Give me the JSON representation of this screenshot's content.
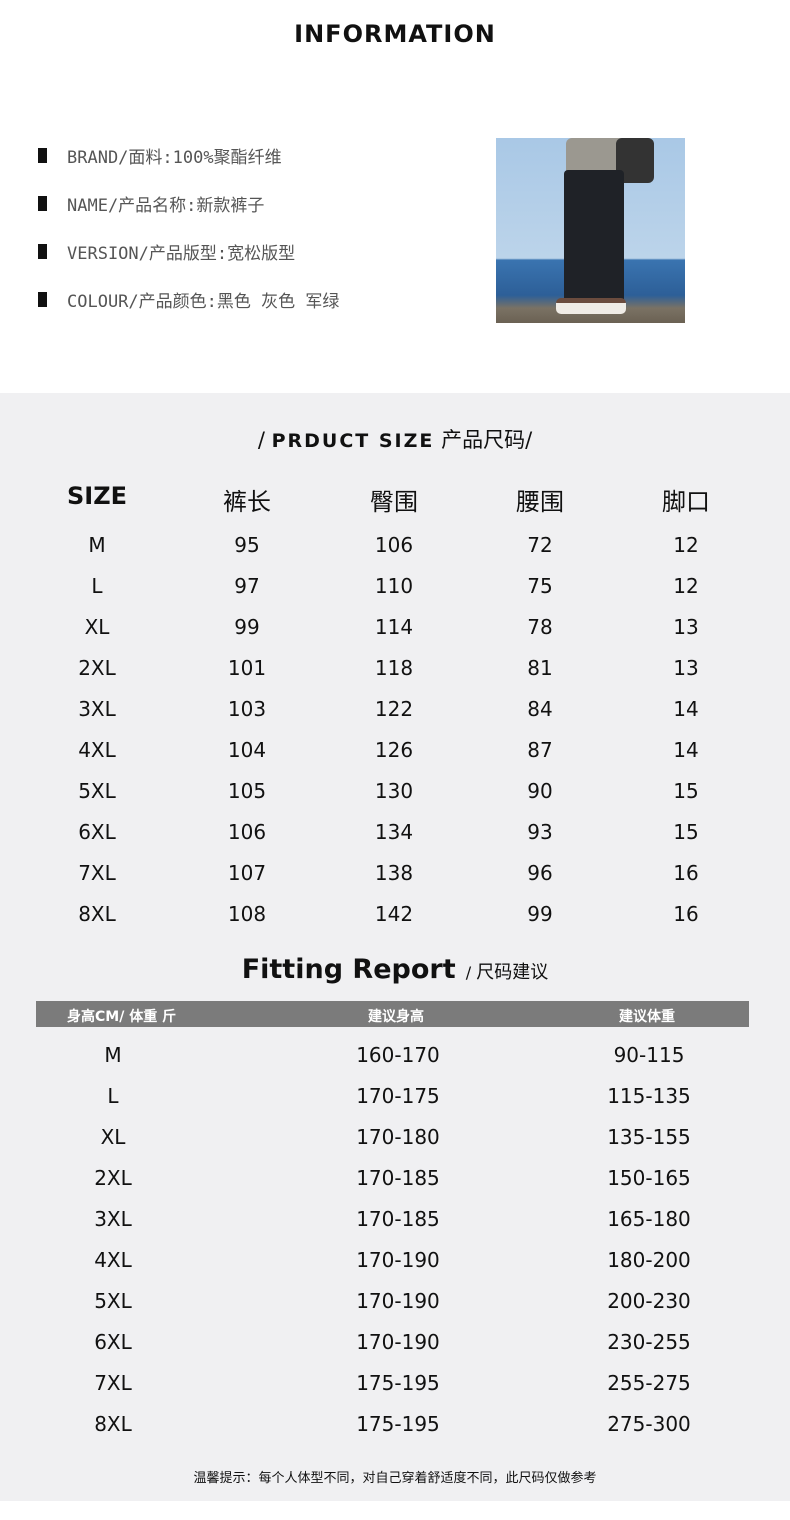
{
  "title": "INFORMATION",
  "info": [
    "BRAND/面料:100%聚酯纤维",
    "NAME/产品名称:新款裤子",
    "VERSION/产品版型:宽松版型",
    "COLOUR/产品颜色:黑色 灰色 军绿"
  ],
  "size_section": {
    "title_en": "PRDUCT SIZE",
    "title_cn": "产品尺码",
    "headers": [
      "SIZE",
      "裤长",
      "臀围",
      "腰围",
      "脚口"
    ],
    "rows": [
      [
        "M",
        "95",
        "106",
        "72",
        "12"
      ],
      [
        "L",
        "97",
        "110",
        "75",
        "12"
      ],
      [
        "XL",
        "99",
        "114",
        "78",
        "13"
      ],
      [
        "2XL",
        "101",
        "118",
        "81",
        "13"
      ],
      [
        "3XL",
        "103",
        "122",
        "84",
        "14"
      ],
      [
        "4XL",
        "104",
        "126",
        "87",
        "14"
      ],
      [
        "5XL",
        "105",
        "130",
        "90",
        "15"
      ],
      [
        "6XL",
        "106",
        "134",
        "93",
        "15"
      ],
      [
        "7XL",
        "107",
        "138",
        "96",
        "16"
      ],
      [
        "8XL",
        "108",
        "142",
        "99",
        "16"
      ]
    ]
  },
  "fitting": {
    "title_en": "Fitting Report",
    "title_cn": "尺码建议",
    "headers": [
      "身高CM/ 体重 斤",
      "建议身高",
      "建议体重"
    ],
    "rows": [
      [
        "M",
        "160-170",
        "90-115"
      ],
      [
        "L",
        "170-175",
        "115-135"
      ],
      [
        "XL",
        "170-180",
        "135-155"
      ],
      [
        "2XL",
        "170-185",
        "150-165"
      ],
      [
        "3XL",
        "170-185",
        "165-180"
      ],
      [
        "4XL",
        "170-190",
        "180-200"
      ],
      [
        "5XL",
        "170-190",
        "200-230"
      ],
      [
        "6XL",
        "170-190",
        "230-255"
      ],
      [
        "7XL",
        "175-195",
        "255-275"
      ],
      [
        "8XL",
        "175-195",
        "275-300"
      ]
    ]
  },
  "note": "温馨提示：每个人体型不同，对自己穿着舒适度不同，此尺码仅做参考"
}
